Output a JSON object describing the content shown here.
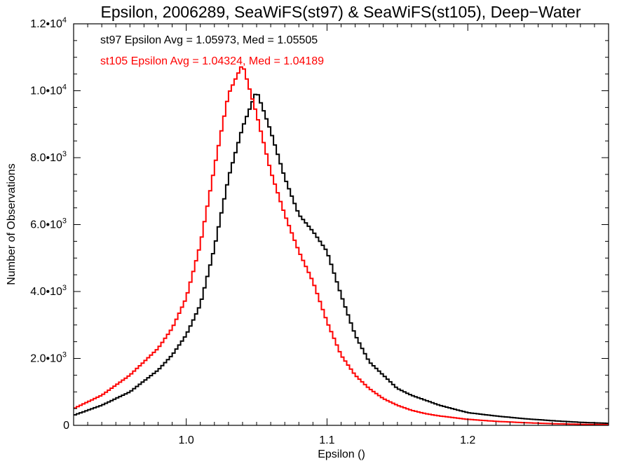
{
  "chart_data": {
    "type": "line",
    "title": "Epsilon, 2006289, SeaWiFS(st97) & SeaWiFS(st105), Deep−Water",
    "xlabel": "Epsilon ()",
    "ylabel": "Number of Observations",
    "xlim": [
      0.92,
      1.3
    ],
    "ylim": [
      0,
      12000
    ],
    "grid": false,
    "xticks": [
      {
        "value": 1.0,
        "label": "1.0"
      },
      {
        "value": 1.1,
        "label": "1.1"
      },
      {
        "value": 1.2,
        "label": "1.2"
      }
    ],
    "yticks": [
      {
        "value": 0,
        "mant": "0",
        "exp": ""
      },
      {
        "value": 2000,
        "mant": "2.0•10",
        "exp": "3"
      },
      {
        "value": 4000,
        "mant": "4.0•10",
        "exp": "3"
      },
      {
        "value": 6000,
        "mant": "6.0•10",
        "exp": "3"
      },
      {
        "value": 8000,
        "mant": "8.0•10",
        "exp": "3"
      },
      {
        "value": 10000,
        "mant": "1.0•10",
        "exp": "4"
      },
      {
        "value": 12000,
        "mant": "1.2•10",
        "exp": "4"
      }
    ],
    "annotations": [
      {
        "text": "st97 Epsilon Avg = 1.05973, Med = 1.05505",
        "color": "#000000"
      },
      {
        "text": "st105 Epsilon Avg = 1.04324, Med = 1.04189",
        "color": "#ff0000"
      }
    ],
    "series": [
      {
        "color": "#000000",
        "x": [
          0.92,
          0.94,
          0.96,
          0.98,
          0.99,
          1.0,
          1.01,
          1.02,
          1.03,
          1.04,
          1.05,
          1.06,
          1.07,
          1.08,
          1.09,
          1.1,
          1.11,
          1.12,
          1.13,
          1.14,
          1.15,
          1.16,
          1.17,
          1.18,
          1.2,
          1.22,
          1.24,
          1.26,
          1.28,
          1.3
        ],
        "y": [
          300,
          600,
          1000,
          1650,
          2100,
          2700,
          3600,
          5300,
          7400,
          8900,
          10000,
          8800,
          7400,
          6300,
          5800,
          5200,
          3900,
          2700,
          1900,
          1500,
          1100,
          900,
          750,
          600,
          380,
          280,
          200,
          140,
          90,
          60
        ]
      },
      {
        "color": "#ff0000",
        "x": [
          0.92,
          0.94,
          0.96,
          0.98,
          0.99,
          1.0,
          1.01,
          1.02,
          1.03,
          1.04,
          1.05,
          1.06,
          1.07,
          1.08,
          1.09,
          1.1,
          1.11,
          1.12,
          1.13,
          1.14,
          1.15,
          1.16,
          1.17,
          1.18,
          1.2,
          1.22,
          1.24,
          1.26,
          1.28,
          1.3
        ],
        "y": [
          500,
          900,
          1500,
          2300,
          2900,
          3800,
          5400,
          7700,
          9900,
          10800,
          9300,
          7600,
          6300,
          5200,
          4300,
          3100,
          2100,
          1500,
          1100,
          800,
          600,
          450,
          350,
          280,
          180,
          120,
          80,
          50,
          30,
          20
        ]
      }
    ]
  }
}
